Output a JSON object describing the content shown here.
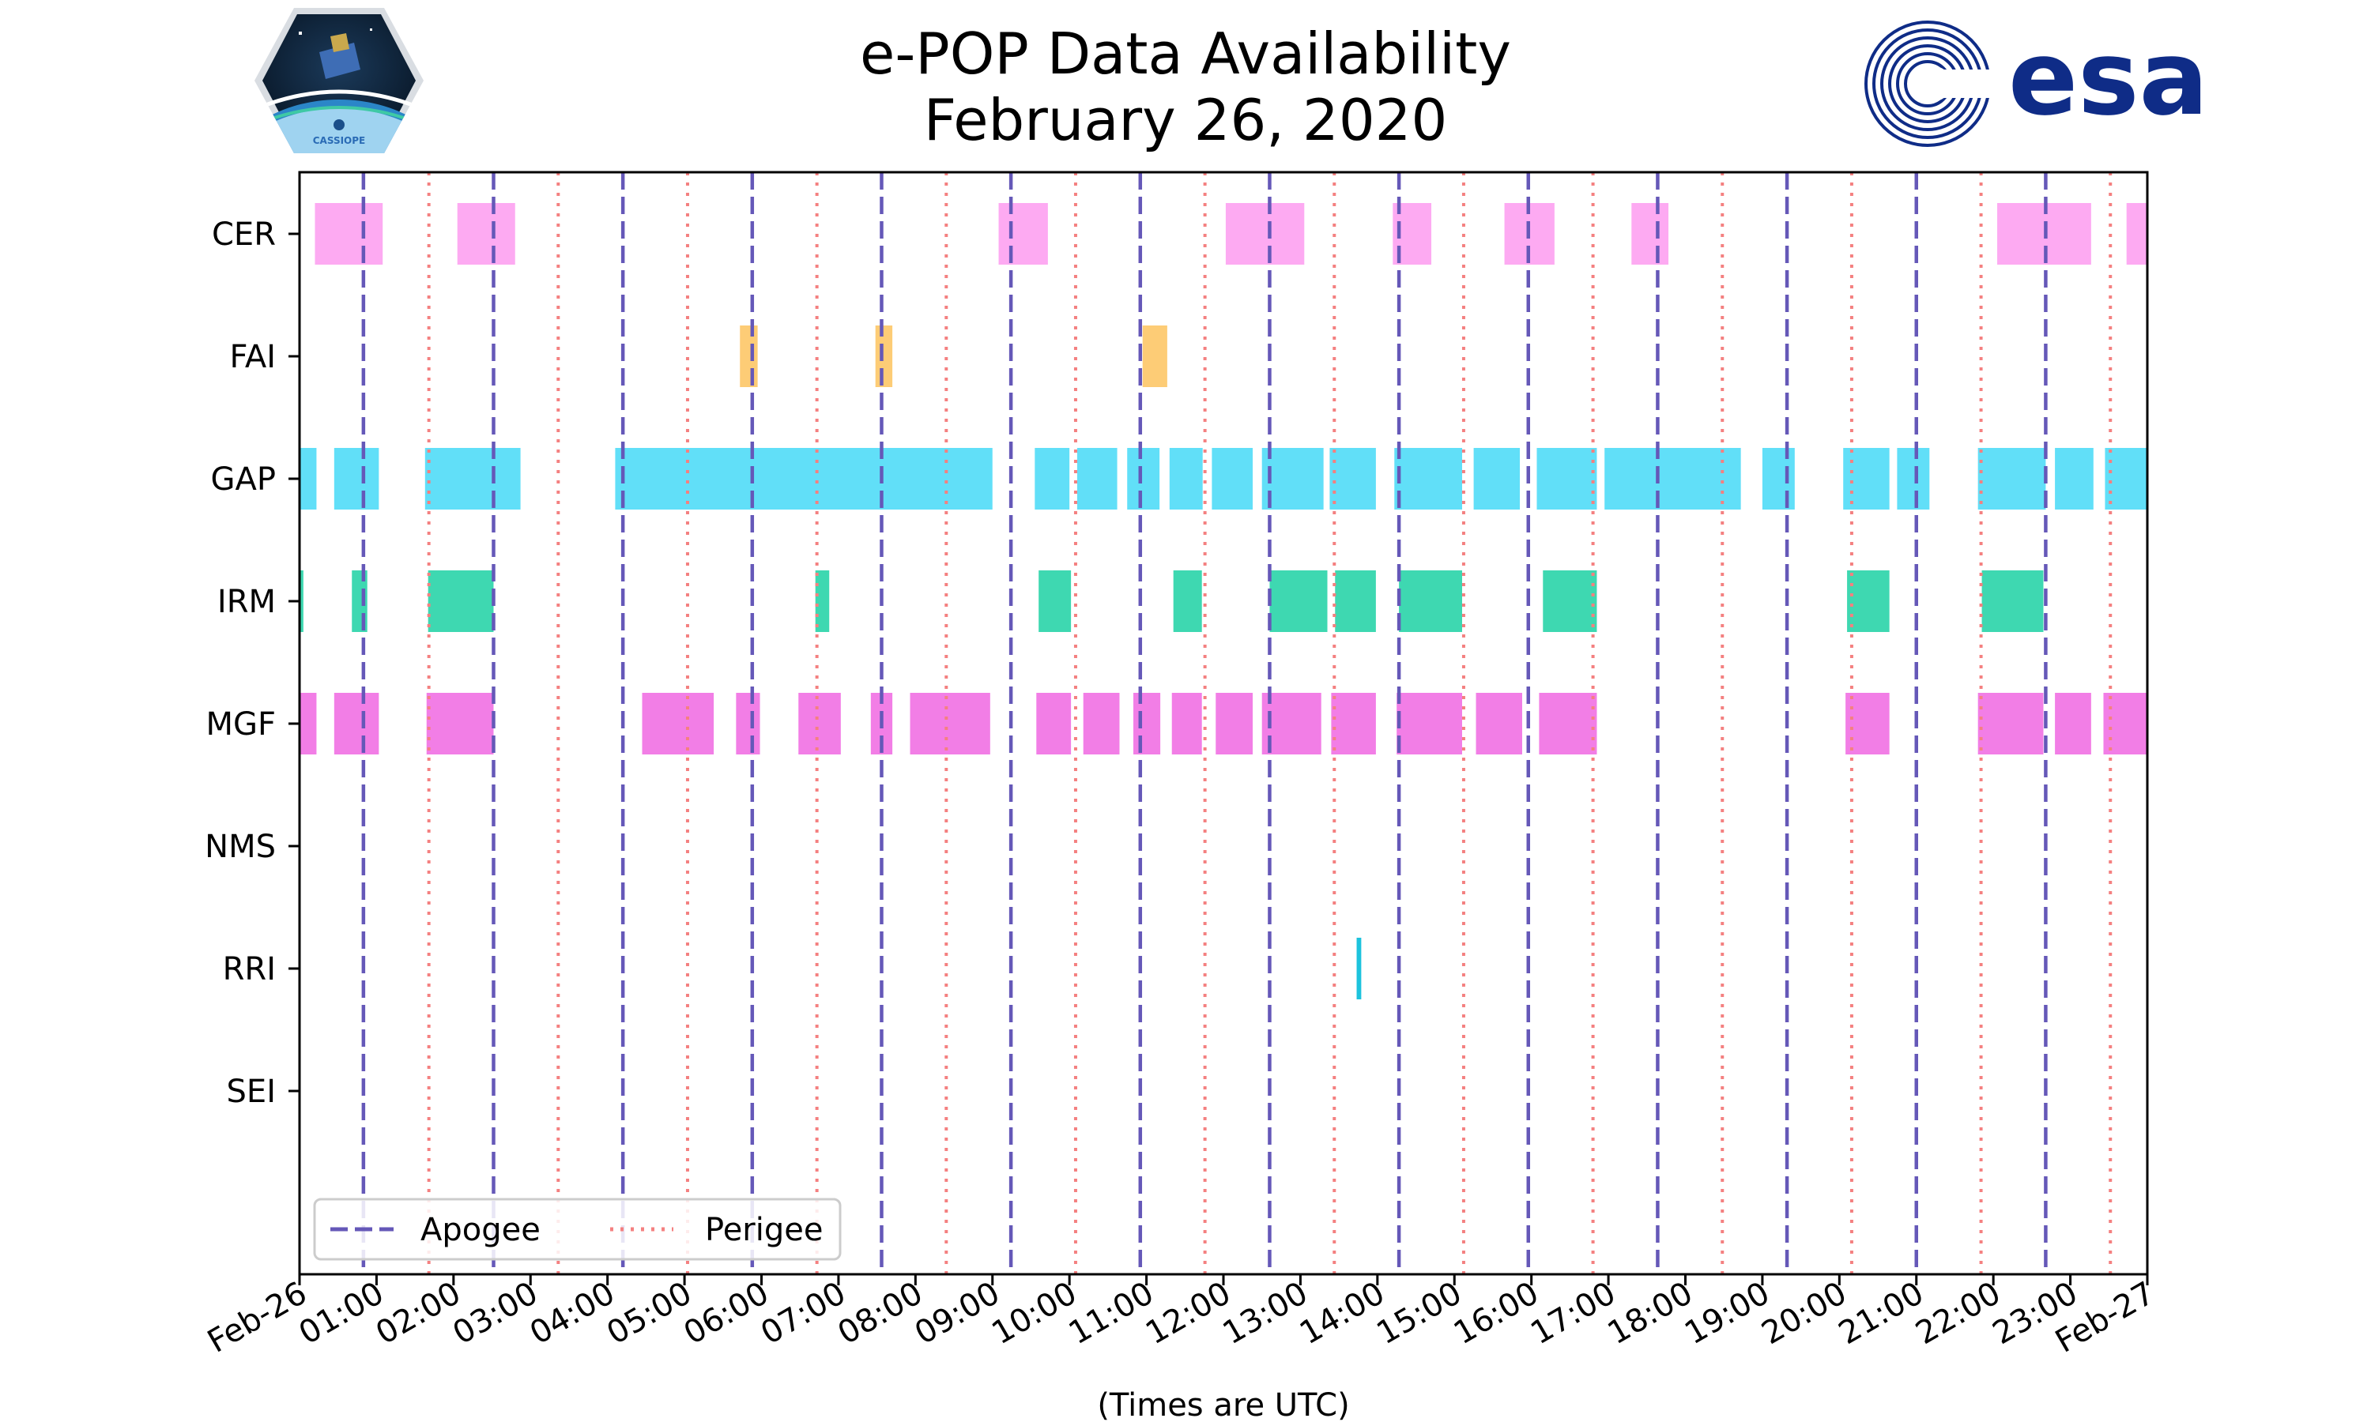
{
  "header": {
    "title_line1": "e-POP Data Availability",
    "title_line2": "February 26, 2020"
  },
  "logos": {
    "left": {
      "name": "cassiope-mission-logo",
      "text": "CASSIOPE"
    },
    "right": {
      "name": "esa-logo",
      "text": "esa"
    }
  },
  "colors": {
    "CER": "#fdaaf2",
    "FAI": "#fdcc76",
    "GAP": "#61dff8",
    "IRM": "#3ed8b1",
    "MGF": "#f27ee6",
    "RRI": "#1cc3dd",
    "apogee": "#6558b8",
    "perigee": "#f48080",
    "esa_blue": "#0f2c87"
  },
  "chart_data": {
    "type": "timeline",
    "title": "e-POP Data Availability\nFebruary 26, 2020",
    "xlabel": "(Times are UTC)",
    "xlim_hours": [
      0,
      24
    ],
    "x_tick_labels": [
      "Feb-26",
      "01:00",
      "02:00",
      "03:00",
      "04:00",
      "05:00",
      "06:00",
      "07:00",
      "08:00",
      "09:00",
      "10:00",
      "11:00",
      "12:00",
      "13:00",
      "14:00",
      "15:00",
      "16:00",
      "17:00",
      "18:00",
      "19:00",
      "20:00",
      "21:00",
      "22:00",
      "23:00",
      "Feb-27"
    ],
    "instruments": [
      "CER",
      "FAI",
      "GAP",
      "IRM",
      "MGF",
      "NMS",
      "RRI",
      "SEI"
    ],
    "intervals_hours": {
      "CER": [
        [
          0.2,
          1.08
        ],
        [
          2.05,
          2.8
        ],
        [
          9.08,
          9.72
        ],
        [
          12.03,
          13.05
        ],
        [
          14.2,
          14.7
        ],
        [
          15.65,
          16.3
        ],
        [
          17.3,
          17.78
        ],
        [
          22.05,
          23.27
        ],
        [
          23.73,
          24.0
        ]
      ],
      "FAI": [
        [
          5.72,
          5.95
        ],
        [
          7.48,
          7.7
        ],
        [
          10.95,
          11.27
        ]
      ],
      "GAP": [
        [
          0.0,
          0.22
        ],
        [
          0.45,
          1.03
        ],
        [
          1.63,
          2.87
        ],
        [
          4.1,
          9.0
        ],
        [
          9.55,
          10.0
        ],
        [
          10.1,
          10.62
        ],
        [
          10.75,
          11.17
        ],
        [
          11.3,
          11.73
        ],
        [
          11.85,
          12.38
        ],
        [
          12.5,
          13.3
        ],
        [
          13.38,
          13.98
        ],
        [
          14.22,
          15.1
        ],
        [
          15.25,
          15.85
        ],
        [
          16.07,
          16.85
        ],
        [
          16.95,
          18.72
        ],
        [
          19.0,
          19.42
        ],
        [
          20.05,
          20.65
        ],
        [
          20.75,
          21.17
        ],
        [
          21.8,
          22.68
        ],
        [
          22.8,
          23.3
        ],
        [
          23.45,
          24.0
        ]
      ],
      "IRM": [
        [
          0.0,
          0.05
        ],
        [
          0.68,
          0.88
        ],
        [
          1.67,
          2.52
        ],
        [
          6.7,
          6.88
        ],
        [
          9.6,
          10.02
        ],
        [
          11.35,
          11.72
        ],
        [
          12.6,
          13.35
        ],
        [
          13.45,
          13.98
        ],
        [
          14.28,
          15.1
        ],
        [
          16.15,
          16.85
        ],
        [
          20.1,
          20.65
        ],
        [
          21.85,
          22.65
        ]
      ],
      "MGF": [
        [
          0.0,
          0.22
        ],
        [
          0.45,
          1.03
        ],
        [
          1.65,
          2.52
        ],
        [
          4.45,
          5.38
        ],
        [
          5.67,
          5.98
        ],
        [
          6.48,
          7.03
        ],
        [
          7.42,
          7.7
        ],
        [
          7.93,
          8.97
        ],
        [
          9.57,
          10.02
        ],
        [
          10.18,
          10.65
        ],
        [
          10.83,
          11.18
        ],
        [
          11.33,
          11.72
        ],
        [
          11.9,
          12.38
        ],
        [
          12.5,
          13.27
        ],
        [
          13.4,
          13.98
        ],
        [
          14.25,
          15.1
        ],
        [
          15.28,
          15.88
        ],
        [
          16.1,
          16.85
        ],
        [
          20.08,
          20.65
        ],
        [
          21.8,
          22.65
        ],
        [
          22.8,
          23.27
        ],
        [
          23.43,
          24.0
        ]
      ],
      "NMS": [],
      "RRI": [
        [
          13.73,
          13.79
        ]
      ],
      "SEI": []
    },
    "apogee_hours": [
      0.83,
      2.52,
      4.2,
      5.88,
      7.56,
      9.24,
      10.92,
      12.6,
      14.28,
      15.96,
      17.64,
      19.32,
      21.0,
      22.68
    ],
    "perigee_hours": [
      1.68,
      3.36,
      5.04,
      6.72,
      8.4,
      10.08,
      11.76,
      13.44,
      15.12,
      16.8,
      18.48,
      20.16,
      21.84,
      23.52
    ],
    "legend": {
      "placement": "lower-left",
      "entries": [
        {
          "label": "Apogee",
          "style": "dashed"
        },
        {
          "label": "Perigee",
          "style": "dotted"
        }
      ]
    }
  }
}
